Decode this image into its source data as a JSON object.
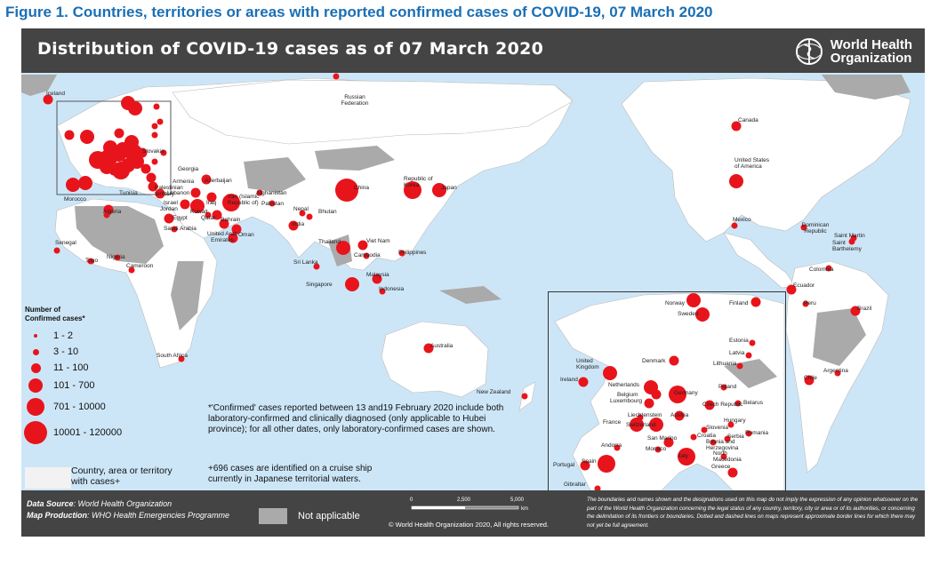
{
  "figure_caption": "Figure 1. Countries, territories or areas with reported confirmed cases of COVID-19, 07 March 2020",
  "header": {
    "title": "Distribution of COVID-19 cases as of 07 March 2020",
    "org_name_line1": "World Health",
    "org_name_line2": "Organization"
  },
  "legend": {
    "title": "Number of Confirmed cases*",
    "items": [
      {
        "label": "1 - 2"
      },
      {
        "label": "3 - 10"
      },
      {
        "label": "11 - 100"
      },
      {
        "label": "101 - 700"
      },
      {
        "label": "701 - 10000"
      },
      {
        "label": "10001 - 120000"
      }
    ],
    "country_with_cases_label": "Country, area or territory with cases+"
  },
  "notes": {
    "confirmed": "*'Confirmed' cases reported between 13 and19 February 2020 include both laboratory-confirmed and clinically diagnosed (only applicable to Hubei province); for all other dates, only laboratory-confirmed cases are shown.",
    "cruise": "+696 cases are identified on a cruise ship currently in Japanese territorial waters."
  },
  "footer": {
    "data_source_label": "Data Source",
    "data_source_value": "World Health Organization",
    "map_production_label": "Map Production",
    "map_production_value": "WHO Health Emergencies Programme",
    "not_applicable": "Not applicable",
    "scale_labels": [
      "0",
      "2,500",
      "5,000"
    ],
    "scale_unit": "km",
    "copyright": "© World Health Organization 2020, All rights reserved.",
    "disclaimer": "The boundaries and names shown and the designations used on this map do not imply the expression of any opinion whatsoever on the part of the World Health Organization concerning the legal status of any country, territory, city or area or of its authorities, or concerning the delimitation of its frontiers or boundaries. Dotted and dashed lines on maps represent approximate border lines for which there may not yet be full agreement."
  },
  "colors": {
    "marker": "#e8141c",
    "bar": "#444444",
    "ocean": "#cde6f7",
    "land": "#ffffff",
    "not_applicable": "#aaaaaa",
    "caption": "#1a6fb5"
  },
  "map_labels": [
    "Iceland",
    "Russian Federation",
    "Slovakia",
    "Georgia",
    "Armenia",
    "Azerbaijan",
    "Tunisia",
    "Lebanon",
    "Palestinian territory",
    "Afghanistan",
    "Morocco",
    "Algeria",
    "Israel",
    "Iraq",
    "Iran (Islamic Republic of)",
    "Pakistan",
    "Jordan",
    "Kuwait",
    "Qatar",
    "Bahrain",
    "Egypt",
    "Saudi Arabia",
    "United Arab Emirates",
    "Oman",
    "Nepal",
    "Bhutan",
    "India",
    "China",
    "Republic of Korea",
    "Japan",
    "Senegal",
    "Togo",
    "Nigeria",
    "Cameroon",
    "Thailand",
    "Viet Nam",
    "Cambodia",
    "Philippines",
    "Sri Lanka",
    "Malaysia",
    "Singapore",
    "Indonesia",
    "South Africa",
    "Australia",
    "New Zealand",
    "Canada",
    "United States of America",
    "Mexico",
    "Dominican Republic",
    "Saint Martin",
    "Saint Barthelemy",
    "Colombia",
    "Ecuador",
    "Peru",
    "Brazil",
    "Chile",
    "Argentina",
    "Norway",
    "Sweden",
    "Finland",
    "Estonia",
    "Latvia",
    "Lithuania",
    "Denmark",
    "United Kingdom",
    "Ireland",
    "Netherlands",
    "Belgium",
    "Luxembourg",
    "Germany",
    "Poland",
    "Belarus",
    "Czech Republic",
    "Liechtenstein",
    "Austria",
    "Hungary",
    "France",
    "Switzerland",
    "Slovenia",
    "Croatia",
    "Romania",
    "San Marino",
    "Bosnia and Herzegovina",
    "Serbia",
    "Monaco",
    "Andorra",
    "Italy",
    "North Macedonia",
    "Portugal",
    "Spain",
    "Greece",
    "Gibraltar"
  ]
}
